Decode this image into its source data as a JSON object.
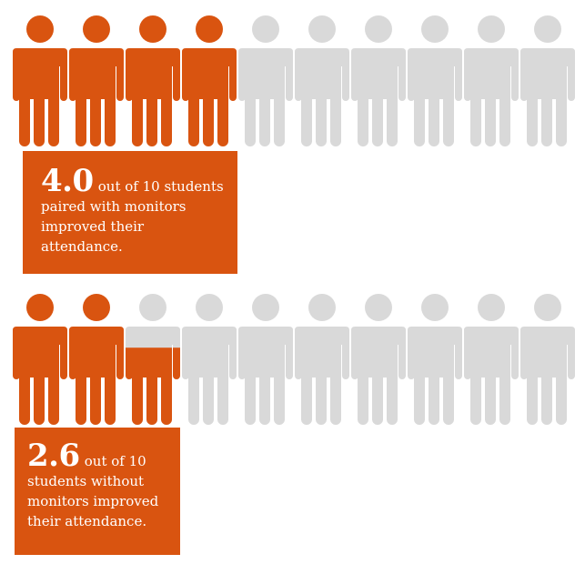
{
  "colors": {
    "accent": "#D95410",
    "inactive": "#D9D9D9",
    "callout_text": "#FFFFFF"
  },
  "chart_data": [
    {
      "type": "pictograph",
      "icon": "person-icon",
      "total_icons": 10,
      "value": 4.0,
      "highlight_color": "#D95410",
      "base_color": "#D9D9D9",
      "label_value": "4.0",
      "label_text": "out of 10 students paired with monitors improved their attendance."
    },
    {
      "type": "pictograph",
      "icon": "person-icon",
      "total_icons": 10,
      "value": 2.6,
      "highlight_color": "#D95410",
      "base_color": "#D9D9D9",
      "label_value": "2.6",
      "label_text": "out of 10 students without monitors improved their attendance."
    }
  ]
}
